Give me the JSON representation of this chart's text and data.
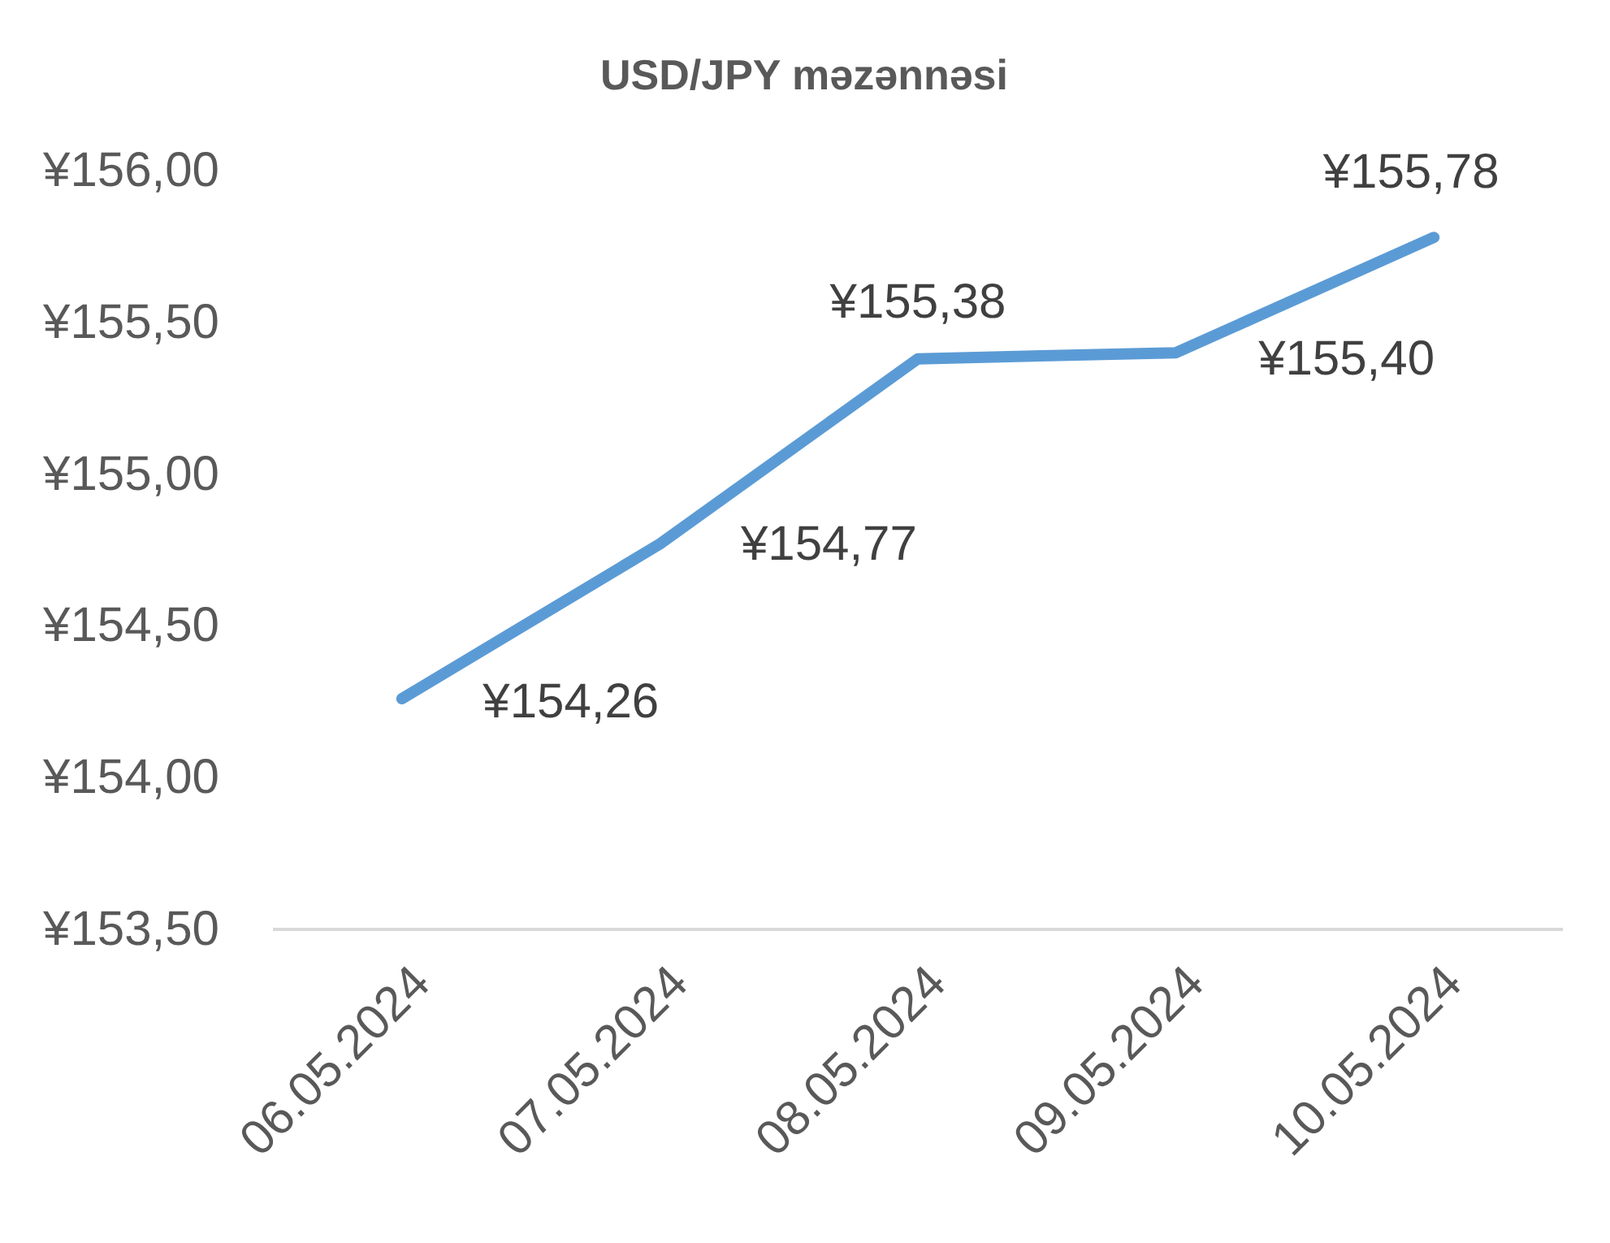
{
  "chart_data": {
    "type": "line",
    "title": "USD/JPY məzənnəsi",
    "categories": [
      "06.05.2024",
      "07.05.2024",
      "08.05.2024",
      "09.05.2024",
      "10.05.2024"
    ],
    "series": [
      {
        "color": "#5b9bd5",
        "values": [
          154.26,
          154.77,
          155.38,
          155.4,
          155.78
        ],
        "value_labels": [
          "¥154,26",
          "¥154,77",
          "¥155,38",
          "¥155,40",
          "¥155,78"
        ]
      }
    ],
    "ylim": [
      153.5,
      156
    ],
    "yticks": [
      {
        "value": 153.5,
        "label": "¥153,50"
      },
      {
        "value": 154,
        "label": "¥154,00"
      },
      {
        "value": 154.5,
        "label": "¥154,50"
      },
      {
        "value": 155,
        "label": "¥155,00"
      },
      {
        "value": 155.5,
        "label": "¥155,50"
      },
      {
        "value": 156,
        "label": "¥156,00"
      }
    ],
    "grid": false,
    "marker": "none",
    "line_style": "solid"
  }
}
